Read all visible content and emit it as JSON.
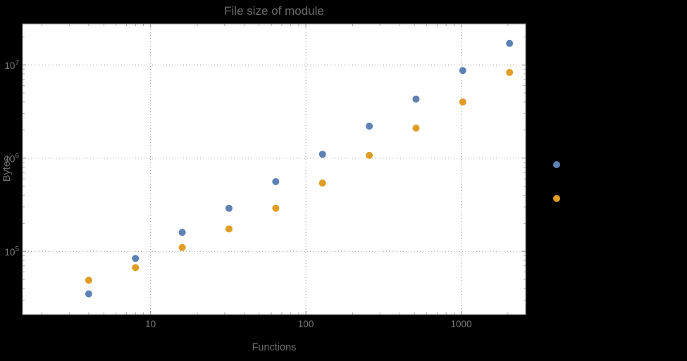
{
  "title": "File size of module",
  "chart_data": {
    "type": "scatter",
    "title": "File size of module",
    "xlabel": "Functions",
    "ylabel": "Bytes",
    "x_scale": "log",
    "y_scale": "log",
    "xlim": [
      1.5,
      2600
    ],
    "ylim": [
      21000,
      27500000
    ],
    "grid": "dotted-major",
    "x_ticks": [
      {
        "value": 10,
        "label": "10"
      },
      {
        "value": 100,
        "label": "100"
      },
      {
        "value": 1000,
        "label": "1000"
      }
    ],
    "y_ticks": [
      {
        "value": 100000,
        "base": "10",
        "exp": "5"
      },
      {
        "value": 1000000,
        "base": "10",
        "exp": "6"
      },
      {
        "value": 10000000,
        "base": "10",
        "exp": "7"
      }
    ],
    "series": [
      {
        "color": "#5E81B5",
        "marker": "circle",
        "x": [
          4,
          8,
          16,
          32,
          64,
          128,
          256,
          512,
          1024,
          2048
        ],
        "y": [
          35000,
          84000,
          160000,
          290000,
          560000,
          1100000,
          2200000,
          4300000,
          8700000,
          17000000
        ]
      },
      {
        "color": "#E19C24",
        "marker": "circle",
        "x": [
          4,
          8,
          16,
          32,
          64,
          128,
          256,
          512,
          1024,
          2048
        ],
        "y": [
          49000,
          67000,
          110000,
          174000,
          290000,
          540000,
          1070000,
          2100000,
          4000000,
          8300000
        ]
      }
    ],
    "legend": {
      "position": "outside-right",
      "marker_colors": [
        "#5E81B5",
        "#E19C24"
      ]
    }
  },
  "style": {
    "background": "#000000",
    "plot_background": "#ffffff",
    "frame_color": "#8f8f8f",
    "grid_color": "#9e9e9e",
    "tick_label_color": "#7a7a7a",
    "title_color": "#6b6b6b",
    "axis_label_color": "#6e6e6e"
  }
}
